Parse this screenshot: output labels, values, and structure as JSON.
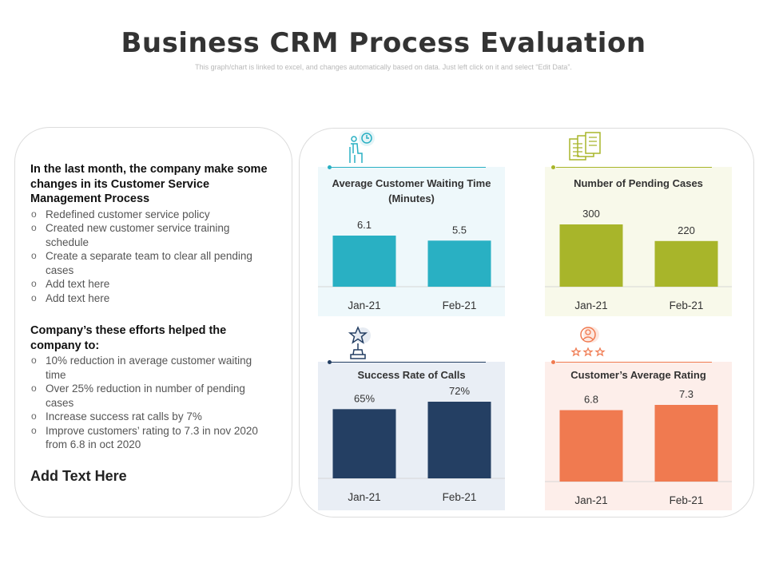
{
  "header": {
    "title": "Business CRM Process Evaluation",
    "subtitle": "This graph/chart is linked to excel, and changes automatically  based on data. Just left click on it and select “Edit Data”."
  },
  "left_panel": {
    "heading1": "In the last month, the company make some changes in its Customer Service Management Process",
    "bullets1": [
      "Redefined customer service policy",
      "Created new customer service training schedule",
      "Create a separate team to clear all pending cases",
      "Add text here",
      "Add text here"
    ],
    "heading2": "Company’s these efforts helped the company to:",
    "bullets2": [
      "10% reduction in average customer waiting time",
      "Over 25% reduction in number of pending cases",
      "Increase success rat calls by 7%",
      "Improve customers’ rating to 7.3 in nov 2020 from 6.8 in oct 2020"
    ],
    "footer": "Add Text Here"
  },
  "icons": [
    "clock-person-icon",
    "documents-icon",
    "trophy-icon",
    "user-rating-icon"
  ],
  "chart_data": [
    {
      "type": "bar",
      "title": "Average Customer Waiting Time (Minutes)",
      "categories": [
        "Jan-21",
        "Feb-21"
      ],
      "values": [
        6.1,
        5.5
      ],
      "value_labels": [
        "6.1",
        "5.5"
      ],
      "color": "#29b0c3",
      "background": "#eef8fb"
    },
    {
      "type": "bar",
      "title": "Number of Pending Cases",
      "categories": [
        "Jan-21",
        "Feb-21"
      ],
      "values": [
        300,
        220
      ],
      "value_labels": [
        "300",
        "220"
      ],
      "color": "#a8b52a",
      "background": "#f8f9ea"
    },
    {
      "type": "bar",
      "title": "Success Rate of Calls",
      "categories": [
        "Jan-21",
        "Feb-21"
      ],
      "values": [
        65,
        72
      ],
      "value_labels": [
        "65%",
        "72%"
      ],
      "color": "#243f63",
      "background": "#e9eef5"
    },
    {
      "type": "bar",
      "title": "Customer’s Average Rating",
      "categories": [
        "Jan-21",
        "Feb-21"
      ],
      "values": [
        6.8,
        7.3
      ],
      "value_labels": [
        "6.8",
        "7.3"
      ],
      "color": "#f07a50",
      "background": "#fdeeea"
    }
  ]
}
